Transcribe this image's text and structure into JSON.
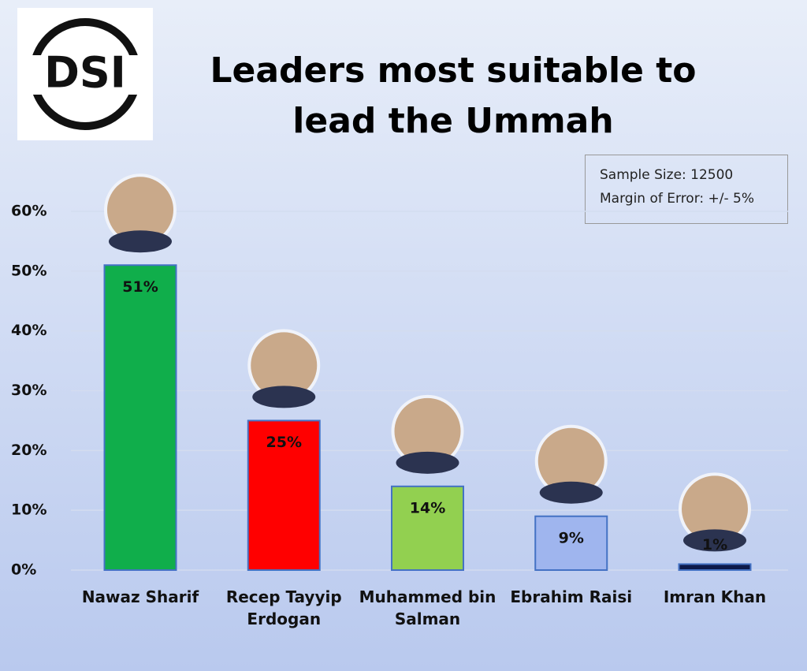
{
  "chart_data": {
    "type": "bar",
    "logo": "DSI",
    "title": "Leaders most suitable to lead the Ummah",
    "annotations": [
      "Sample Size: 12500",
      "Margin of Error: +/- 5%"
    ],
    "categories": [
      "Nawaz Sharif",
      "Recep Tayyip Erdogan",
      "Muhammed bin Salman",
      "Ebrahim Raisi",
      "Imran Khan"
    ],
    "values": [
      51,
      25,
      14,
      9,
      1
    ],
    "value_labels": [
      "51%",
      "25%",
      "14%",
      "9%",
      "1%"
    ],
    "colors": [
      "#10ae4b",
      "#ff0000",
      "#92d050",
      "#9fb5ee",
      "#0d1a4a"
    ],
    "ylim": [
      0,
      60
    ],
    "yticks": [
      {
        "value": 0,
        "label": "0%"
      },
      {
        "value": 10,
        "label": "10%"
      },
      {
        "value": 20,
        "label": "20%"
      },
      {
        "value": 30,
        "label": "30%"
      },
      {
        "value": 40,
        "label": "40%"
      },
      {
        "value": 50,
        "label": "50%"
      },
      {
        "value": 60,
        "label": "60%"
      }
    ],
    "grid": true
  }
}
